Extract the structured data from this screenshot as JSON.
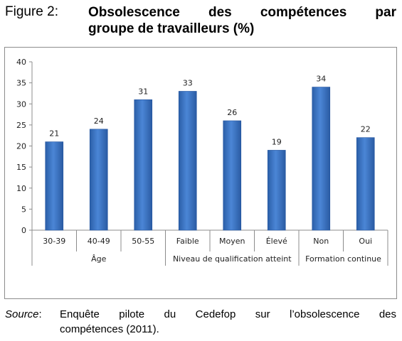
{
  "figure": {
    "label": "Figure 2:",
    "title_line1": "Obsolescence des compétences par",
    "title_line2": "groupe de travailleurs (%)"
  },
  "source": {
    "label": "Source",
    "colon": ":",
    "text_line1": "Enquête pilote du Cedefop sur l’obsolescence des",
    "text_line2": "compétences (2011)."
  },
  "colors": {
    "bar": "#3b73c0",
    "bar_dark": "#2455a0",
    "axis": "#8c8c8c"
  },
  "chart_data": {
    "type": "bar",
    "title": "",
    "ylim": [
      0,
      40
    ],
    "yticks": [
      0,
      5,
      10,
      15,
      20,
      25,
      30,
      35,
      40
    ],
    "categories": [
      "30-39",
      "40-49",
      "50-55",
      "Faible",
      "Moyen",
      "Élevé",
      "Non",
      "Oui"
    ],
    "values": [
      21,
      24,
      31,
      33,
      26,
      19,
      34,
      22
    ],
    "groups": [
      {
        "label": "Âge",
        "count": 3
      },
      {
        "label": "Niveau de qualification atteint",
        "count": 3
      },
      {
        "label": "Formation continue",
        "count": 2
      }
    ],
    "data_labels": true,
    "grid": false,
    "legend": false
  }
}
